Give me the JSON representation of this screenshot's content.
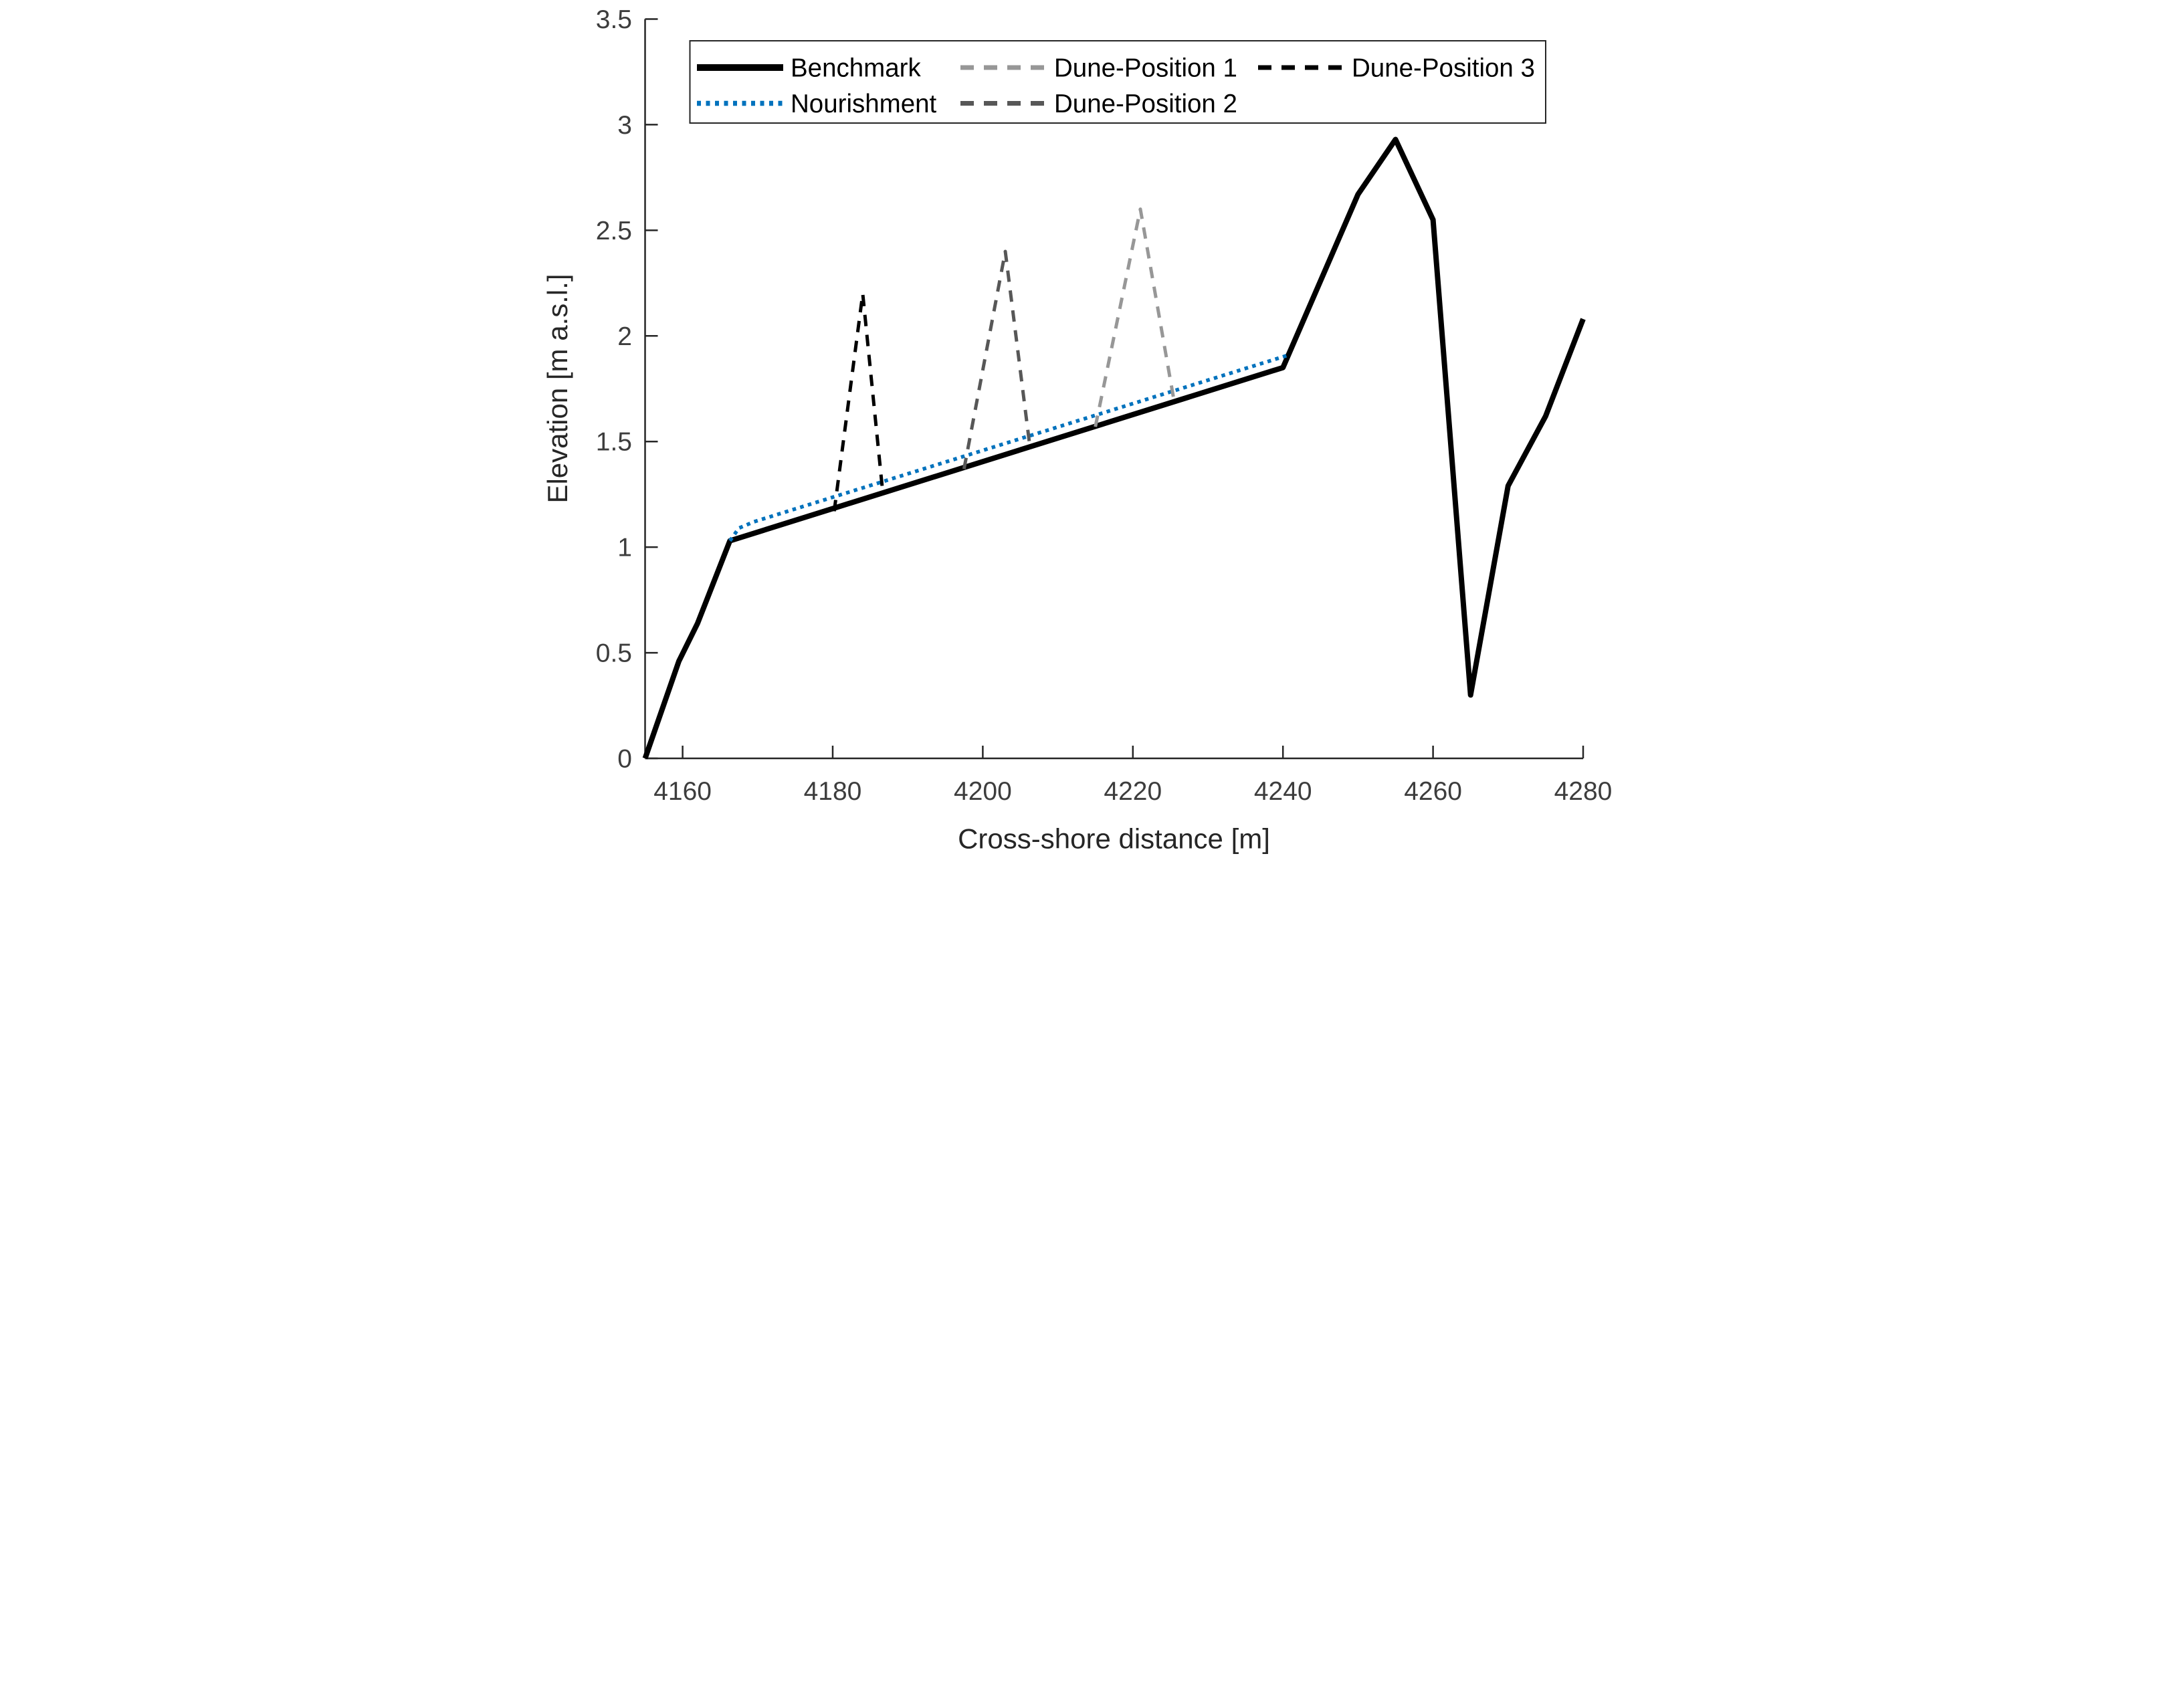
{
  "chart_data": {
    "type": "line",
    "title": "",
    "xlabel": "Cross-shore distance [m]",
    "ylabel": "Elevation [m a.s.l.]",
    "xlim": [
      4155,
      4280
    ],
    "ylim": [
      0,
      3.5
    ],
    "xticks": [
      4160,
      4180,
      4200,
      4220,
      4240,
      4260,
      4280
    ],
    "yticks": [
      0,
      0.5,
      1,
      1.5,
      2,
      2.5,
      3,
      3.5
    ],
    "grid": false,
    "legend_position": "top-left-inside",
    "legend_rows": 2,
    "legend_columns": [
      [
        "Benchmark",
        "Nourishment"
      ],
      [
        "Dune-Position 1",
        "Dune-Position 2"
      ],
      [
        "Dune-Position 3"
      ]
    ],
    "series": [
      {
        "name": "Benchmark",
        "color": "#000000",
        "style": "solid",
        "width": 16,
        "points": [
          [
            4155,
            0
          ],
          [
            4159.5,
            0.46
          ],
          [
            4162,
            0.64
          ],
          [
            4166.3,
            1.03
          ],
          [
            4240,
            1.85
          ],
          [
            4250,
            2.67
          ],
          [
            4255,
            2.93
          ],
          [
            4260,
            2.55
          ],
          [
            4265,
            0.3
          ],
          [
            4270,
            1.29
          ],
          [
            4275,
            1.62
          ],
          [
            4280,
            2.08
          ]
        ]
      },
      {
        "name": "Nourishment",
        "color": "#0072BD",
        "style": "dotted",
        "width": 11,
        "points": [
          [
            4166.3,
            1.03
          ],
          [
            4167.5,
            1.09
          ],
          [
            4169.5,
            1.12
          ],
          [
            4240.8,
            1.91
          ]
        ]
      },
      {
        "name": "Dune-Position 1",
        "color": "#979797",
        "style": "dashed",
        "width": 10,
        "points": [
          [
            4215,
            1.57
          ],
          [
            4221,
            2.6
          ],
          [
            4225.5,
            1.69
          ]
        ]
      },
      {
        "name": "Dune-Position 2",
        "color": "#575757",
        "style": "dashed",
        "width": 10,
        "points": [
          [
            4197.5,
            1.37
          ],
          [
            4203,
            2.4
          ],
          [
            4206.3,
            1.47
          ]
        ]
      },
      {
        "name": "Dune-Position 3",
        "color": "#000000",
        "style": "dashed",
        "width": 10,
        "points": [
          [
            4180.2,
            1.17
          ],
          [
            4184,
            2.2
          ],
          [
            4186.7,
            1.25
          ]
        ]
      }
    ],
    "axis_color": "#262626",
    "tick_label_color": "#3d3d3d",
    "background_color": "#ffffff"
  }
}
